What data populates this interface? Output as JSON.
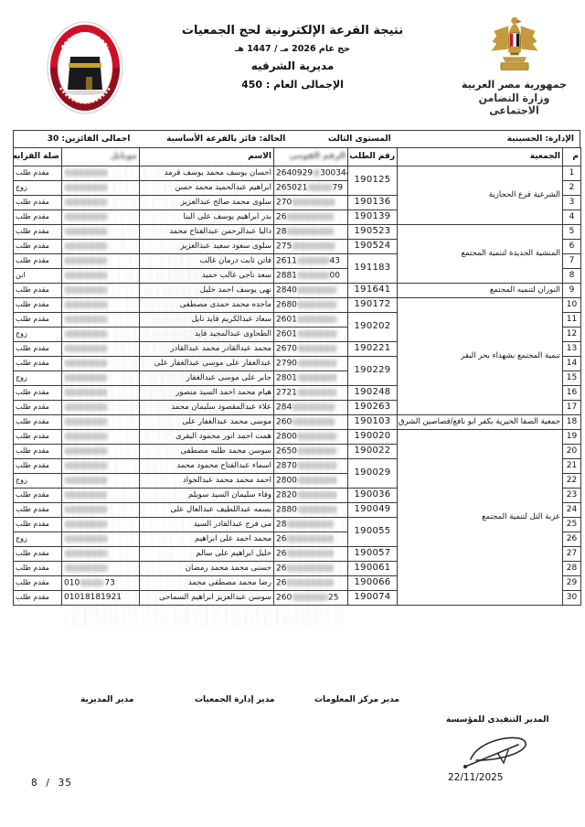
{
  "header": {
    "title": "نتيجة القرعة الإلكترونية لحج الجمعيات",
    "subtitle": "حج عام 2026 مـ / 1447 هـ",
    "directorate": "مديرية الشرقيه",
    "grand_total": "الإجمالى العام : 450",
    "gov_line1": "جمهورية مصر العربية",
    "gov_line2": "وزارة التضامن الاجتماعى"
  },
  "info_bar": {
    "administration": "الإدارة:  الحسينية",
    "level": "المستوى الثالث",
    "status": "الحالة:  فائز بالقرعة الأساسية",
    "winners_total": "اجمالى الفائزين:  30"
  },
  "table": {
    "headers": {
      "no": "م",
      "association": "الجمعية",
      "request": "رقم الطلب",
      "national_id": "الرقم القومى",
      "name": "الاسم",
      "mobile": "موبايل",
      "relation": "صلة القرابه"
    },
    "rows": [
      {
        "no": "1",
        "group": "الشرعية فرع الحجازية",
        "group_span": 4,
        "request": "190125",
        "request_span": 2,
        "nid_prefix": "2640929",
        "nid_suffix": "300344",
        "name": "احسان يوسف محمد يوسف قرمد",
        "mobile": "",
        "mobile_prefix": "",
        "mobile_suffix": "",
        "relation": "مقدم طلب"
      },
      {
        "no": "2",
        "group_span": 0,
        "request_span": 0,
        "nid_prefix": "265021",
        "nid_suffix": "79",
        "name": "ابراهيم عبدالحميد محمد حسن",
        "mobile": "",
        "mobile_prefix": "",
        "mobile_suffix": "",
        "relation": "زوج"
      },
      {
        "no": "3",
        "group_span": 0,
        "request": "190136",
        "request_span": 1,
        "nid_prefix": "270",
        "nid_suffix": "",
        "name": "سلوى محمد صالح عبدالعزيز",
        "mobile": "",
        "mobile_prefix": "",
        "mobile_suffix": "",
        "relation": "مقدم طلب"
      },
      {
        "no": "4",
        "group_span": 0,
        "request": "190139",
        "request_span": 1,
        "nid_prefix": "26",
        "nid_suffix": "",
        "name": "بدر ابراهيم يوسف على البنا",
        "mobile": "",
        "mobile_prefix": "",
        "mobile_suffix": "",
        "relation": "مقدم طلب"
      },
      {
        "no": "5",
        "group": "المنشية الجديدة لتنمية المجتمع",
        "group_span": 4,
        "request": "190523",
        "request_span": 1,
        "nid_prefix": "28",
        "nid_suffix": "",
        "name": "داليا عبدالرحمن عبدالفتاح محمد",
        "mobile": "",
        "mobile_prefix": "",
        "mobile_suffix": "",
        "relation": "مقدم طلب"
      },
      {
        "no": "6",
        "group_span": 0,
        "request": "190524",
        "request_span": 1,
        "nid_prefix": "275",
        "nid_suffix": "",
        "name": "سلوى سعود سعيد عبدالعزيز",
        "mobile": "",
        "mobile_prefix": "",
        "mobile_suffix": "",
        "relation": "مقدم طلب"
      },
      {
        "no": "7",
        "group_span": 0,
        "request": "191183",
        "request_span": 2,
        "nid_prefix": "2611",
        "nid_suffix": "43",
        "name": "فاتن ثابت درمان غالب",
        "mobile": "",
        "mobile_prefix": "",
        "mobile_suffix": "",
        "relation": "مقدم طلب"
      },
      {
        "no": "8",
        "group_span": 0,
        "request_span": 0,
        "nid_prefix": "2881",
        "nid_suffix": "00",
        "name": "سعد ناجى غالب حميد",
        "mobile": "",
        "mobile_prefix": "",
        "mobile_suffix": "",
        "relation": "ابن"
      },
      {
        "no": "9",
        "group": "النوران لتنميه المجتمع",
        "group_span": 1,
        "request": "191641",
        "request_span": 1,
        "nid_prefix": "2840",
        "nid_suffix": "",
        "name": "نهى يوسف احمد خليل",
        "mobile": "",
        "mobile_prefix": "",
        "mobile_suffix": "",
        "relation": "مقدم طلب"
      },
      {
        "no": "10",
        "group": "تنمية المجتمع بشهداء بحر البقر",
        "group_span": 8,
        "request": "190172",
        "request_span": 1,
        "nid_prefix": "2680",
        "nid_suffix": "",
        "name": "ماجده محمد حمدى مصطفى",
        "mobile": "",
        "mobile_prefix": "",
        "mobile_suffix": "",
        "relation": "مقدم طلب"
      },
      {
        "no": "11",
        "group_span": 0,
        "request": "190202",
        "request_span": 2,
        "nid_prefix": "2601",
        "nid_suffix": "",
        "name": "سعاد عبدالكريم فايد نايل",
        "mobile": "",
        "mobile_prefix": "",
        "mobile_suffix": "",
        "relation": "مقدم طلب"
      },
      {
        "no": "12",
        "group_span": 0,
        "request_span": 0,
        "nid_prefix": "2601",
        "nid_suffix": "",
        "name": "الطحاوى عبدالمجيد فايد",
        "mobile": "",
        "mobile_prefix": "",
        "mobile_suffix": "",
        "relation": "زوج"
      },
      {
        "no": "13",
        "group_span": 0,
        "request": "190221",
        "request_span": 1,
        "nid_prefix": "2670",
        "nid_suffix": "",
        "name": "محمد عبدالقادر محمد عبدالقادر",
        "mobile": "",
        "mobile_prefix": "",
        "mobile_suffix": "",
        "relation": "مقدم طلب"
      },
      {
        "no": "14",
        "group_span": 0,
        "request": "190229",
        "request_span": 2,
        "nid_prefix": "2790",
        "nid_suffix": "",
        "name": "عبدالغفار على موسى عبدالغفار على",
        "mobile": "",
        "mobile_prefix": "",
        "mobile_suffix": "",
        "relation": "مقدم طلب"
      },
      {
        "no": "15",
        "group_span": 0,
        "request_span": 0,
        "nid_prefix": "2801",
        "nid_suffix": "",
        "name": "جابر على موسى عبدالغفار",
        "mobile": "",
        "mobile_prefix": "",
        "mobile_suffix": "",
        "relation": "زوج"
      },
      {
        "no": "16",
        "group_span": 0,
        "request": "190248",
        "request_span": 1,
        "nid_prefix": "2721",
        "nid_suffix": "",
        "name": "هيام محمد احمد السيد منصور",
        "mobile": "",
        "mobile_prefix": "",
        "mobile_suffix": "",
        "relation": "مقدم طلب"
      },
      {
        "no": "17",
        "group_span": 0,
        "request": "190263",
        "request_span": 1,
        "nid_prefix": "284",
        "nid_suffix": "",
        "name": "علاء عبدالمقصود سليمان محمد",
        "mobile": "",
        "mobile_prefix": "",
        "mobile_suffix": "",
        "relation": "مقدم طلب"
      },
      {
        "no": "18",
        "group": "جمعية الصفا الخيرية بكفر ابو نافع/قصاصين الشرق",
        "group_span": 1,
        "request": "190103",
        "request_span": 1,
        "nid_prefix": "260",
        "nid_suffix": "",
        "name": "موسى محمد عبدالغفار على",
        "mobile": "",
        "mobile_prefix": "",
        "mobile_suffix": "",
        "relation": "مقدم طلب"
      },
      {
        "no": "19",
        "group": "عزبة التل لتنمية المجتمع",
        "group_span": 12,
        "request": "190020",
        "request_span": 1,
        "nid_prefix": "2800",
        "nid_suffix": "",
        "name": "همت احمد انور محمود البقرى",
        "mobile": "",
        "mobile_prefix": "",
        "mobile_suffix": "",
        "relation": "مقدم طلب"
      },
      {
        "no": "20",
        "group_span": 0,
        "request": "190022",
        "request_span": 1,
        "nid_prefix": "2650",
        "nid_suffix": "",
        "name": "سوسن محمد طلبه مصطفى",
        "mobile": "",
        "mobile_prefix": "",
        "mobile_suffix": "",
        "relation": "مقدم طلب"
      },
      {
        "no": "21",
        "group_span": 0,
        "request": "190029",
        "request_span": 2,
        "nid_prefix": "2870",
        "nid_suffix": "",
        "name": "اسماء عبدالفتاح محمود محمد",
        "mobile": "",
        "mobile_prefix": "",
        "mobile_suffix": "",
        "relation": "مقدم طلب"
      },
      {
        "no": "22",
        "group_span": 0,
        "request_span": 0,
        "nid_prefix": "2800",
        "nid_suffix": "",
        "name": "احمد محمد محمد عبدالجواد",
        "mobile": "",
        "mobile_prefix": "",
        "mobile_suffix": "",
        "relation": "زوج"
      },
      {
        "no": "23",
        "group_span": 0,
        "request": "190036",
        "request_span": 1,
        "nid_prefix": "2820",
        "nid_suffix": "",
        "name": "وفاء سليمان السيد سويلم",
        "mobile": "",
        "mobile_prefix": "",
        "mobile_suffix": "",
        "relation": "مقدم طلب"
      },
      {
        "no": "24",
        "group_span": 0,
        "request": "190049",
        "request_span": 1,
        "nid_prefix": "2880",
        "nid_suffix": "",
        "name": "بسمه عبداللطيف عبدالعال على",
        "mobile": "",
        "mobile_prefix": "",
        "mobile_suffix": "",
        "relation": "مقدم طلب"
      },
      {
        "no": "25",
        "group_span": 0,
        "request": "190055",
        "request_span": 2,
        "nid_prefix": "28",
        "nid_suffix": "",
        "name": "مى فرج عبدالقادر السيد",
        "mobile": "",
        "mobile_prefix": "",
        "mobile_suffix": "",
        "relation": "مقدم طلب"
      },
      {
        "no": "26",
        "group_span": 0,
        "request_span": 0,
        "nid_prefix": "26",
        "nid_suffix": "",
        "name": "محمد احمد على ابراهيم",
        "mobile": "",
        "mobile_prefix": "",
        "mobile_suffix": "",
        "relation": "زوج"
      },
      {
        "no": "27",
        "group_span": 0,
        "request": "190057",
        "request_span": 1,
        "nid_prefix": "26",
        "nid_suffix": "",
        "name": "خليل ابراهيم على سالم",
        "mobile": "",
        "mobile_prefix": "",
        "mobile_suffix": "",
        "relation": "مقدم طلب"
      },
      {
        "no": "28",
        "group_span": 0,
        "request": "190061",
        "request_span": 1,
        "nid_prefix": "26",
        "nid_suffix": "",
        "name": "حسنى محمد محمد رمضان",
        "mobile": "",
        "mobile_prefix": "",
        "mobile_suffix": "",
        "relation": "مقدم طلب"
      },
      {
        "no": "29",
        "group_span": 0,
        "request": "190066",
        "request_span": 1,
        "nid_prefix": "26",
        "nid_suffix": "",
        "name": "رضا محمد مصطفى محمد",
        "mobile": "",
        "mobile_prefix": "010",
        "mobile_suffix": "73",
        "relation": "مقدم طلب"
      },
      {
        "no": "30",
        "group_span": 0,
        "request": "190074",
        "request_span": 1,
        "nid_prefix": "260",
        "nid_suffix": "25",
        "name": "سوسن عبدالعزيز ابراهيم السماحى",
        "mobile": "01018181921",
        "mobile_prefix": "",
        "mobile_suffix": "",
        "relation": "مقدم طلب"
      }
    ]
  },
  "footer": {
    "sig_mudiriya": "مدير المديرية",
    "sig_gamiyat": "مدير إدارة الجمعيات",
    "sig_maaloumat": "مدير مركز المعلومات",
    "sig_exec": "المدير التنفيذى للمؤسسة",
    "date": "22/11/2025",
    "page_current": "8",
    "page_separator": "/",
    "page_total": "35"
  },
  "colors": {
    "flag_red": "#ce1126",
    "eagle_gold": "#c49a3c",
    "border": "#3a3a3a",
    "text": "#111111"
  }
}
